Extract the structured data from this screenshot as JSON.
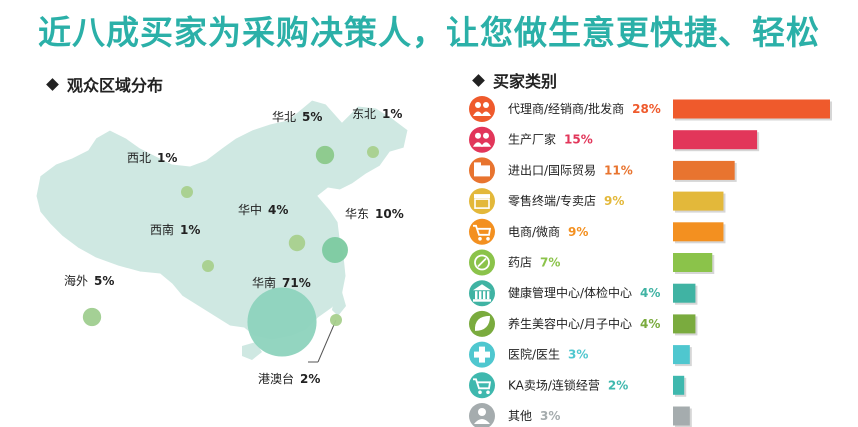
{
  "headline": "近八成买家为采购决策人，让您做生意更快捷、轻松",
  "map_section_title": "观众区域分布",
  "category_section_title": "买家类别",
  "chart_data": [
    {
      "type": "bubble-map",
      "regions": [
        {
          "name": "华北",
          "value": 5,
          "pct": "5%",
          "color": "#8bc98a"
        },
        {
          "name": "东北",
          "value": 1,
          "pct": "1%",
          "color": "#a8d08d"
        },
        {
          "name": "西北",
          "value": 1,
          "pct": "1%",
          "color": "#a8d08d"
        },
        {
          "name": "华中",
          "value": 4,
          "pct": "4%",
          "color": "#a8d08d"
        },
        {
          "name": "华东",
          "value": 10,
          "pct": "10%",
          "color": "#7ccaa0"
        },
        {
          "name": "西南",
          "value": 1,
          "pct": "1%",
          "color": "#a8d08d"
        },
        {
          "name": "华南",
          "value": 71,
          "pct": "71%",
          "color": "#8dd3bd"
        },
        {
          "name": "海外",
          "value": 5,
          "pct": "5%",
          "color": "#9fce8f"
        },
        {
          "name": "港澳台",
          "value": 2,
          "pct": "2%",
          "color": "#a8d08d"
        }
      ]
    },
    {
      "type": "bar",
      "orientation": "horizontal",
      "categories": [
        "代理商/经销商/批发商",
        "生产厂家",
        "进出口/国际贸易",
        "零售终端/专卖店",
        "电商/微商",
        "药店",
        "健康管理中心/体检中心",
        "养生美容中心/月子中心",
        "医院/医生",
        "KA卖场/连锁经营",
        "其他"
      ],
      "values": [
        28,
        15,
        11,
        9,
        9,
        7,
        4,
        4,
        3,
        2,
        3
      ],
      "labels": [
        "28%",
        "15%",
        "11%",
        "9%",
        "9%",
        "7%",
        "4%",
        "4%",
        "3%",
        "2%",
        "3%"
      ],
      "colors": [
        "#ef5a2c",
        "#e2365a",
        "#e8742f",
        "#e3b83a",
        "#f39020",
        "#8bc34a",
        "#40b3a3",
        "#7aab3e",
        "#4fc7cf",
        "#3fb8ae",
        "#a5acae"
      ],
      "icons": [
        "people-icon",
        "people-icon",
        "box-icon",
        "store-icon",
        "cart-icon",
        "pill-icon",
        "building-icon",
        "leaf-icon",
        "cross-icon",
        "cart-icon",
        "person-icon"
      ]
    }
  ]
}
